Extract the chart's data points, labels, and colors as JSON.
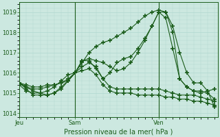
{
  "background_color": "#cce8e0",
  "plot_bg_color": "#cce8e0",
  "grid_color": "#b0d8d0",
  "line_color": "#1a5c1a",
  "title": "Pression niveau de la mer( hPa )",
  "xlabel_day_labels": [
    "Jeu",
    "Sam",
    "Ven"
  ],
  "xlabel_day_positions": [
    0,
    16,
    40
  ],
  "ylim": [
    1013.8,
    1019.5
  ],
  "yticks": [
    1014,
    1015,
    1016,
    1017,
    1018,
    1019
  ],
  "xlim": [
    0,
    57
  ],
  "series": [
    {
      "x": [
        0,
        2,
        4,
        6,
        8,
        10,
        12,
        14,
        16,
        18,
        20,
        22,
        24,
        26,
        28,
        30,
        32,
        34,
        36,
        38,
        40,
        42,
        44,
        46,
        48,
        50,
        52,
        54,
        56
      ],
      "y": [
        1015.5,
        1015.3,
        1015.1,
        1015.0,
        1014.9,
        1015.0,
        1015.2,
        1015.6,
        1016.0,
        1016.5,
        1017.0,
        1017.3,
        1017.5,
        1017.6,
        1017.8,
        1018.0,
        1018.2,
        1018.5,
        1018.8,
        1019.0,
        1019.1,
        1019.0,
        1018.3,
        1017.0,
        1016.0,
        1015.5,
        1015.5,
        1015.1,
        1014.3
      ]
    },
    {
      "x": [
        0,
        2,
        4,
        6,
        8,
        10,
        12,
        14,
        16,
        18,
        20,
        22,
        24,
        26,
        28,
        30,
        32,
        34,
        36,
        38,
        40,
        42,
        44,
        46,
        48,
        50,
        52,
        54,
        56
      ],
      "y": [
        1015.5,
        1015.2,
        1014.9,
        1014.9,
        1014.9,
        1015.0,
        1015.3,
        1015.6,
        1016.0,
        1016.6,
        1016.7,
        1016.6,
        1016.5,
        1016.3,
        1016.1,
        1016.2,
        1016.5,
        1017.0,
        1017.6,
        1018.3,
        1019.0,
        1018.7,
        1017.2,
        1015.7,
        1015.3,
        1015.1,
        1015.1,
        1015.0,
        1014.7
      ]
    },
    {
      "x": [
        0,
        2,
        4,
        6,
        8,
        10,
        12,
        14,
        16,
        18,
        20,
        22,
        24,
        26,
        28,
        30,
        32,
        34,
        36,
        38,
        40,
        42,
        44,
        46,
        48,
        50,
        52,
        54,
        56
      ],
      "y": [
        1015.4,
        1015.1,
        1015.0,
        1015.0,
        1015.1,
        1015.3,
        1015.6,
        1015.9,
        1016.0,
        1016.6,
        1016.6,
        1016.2,
        1015.7,
        1016.0,
        1016.5,
        1016.7,
        1016.8,
        1017.2,
        1017.7,
        1018.3,
        1019.0,
        1019.0,
        1018.0,
        1015.7,
        1015.3,
        1015.1,
        1015.0,
        1015.1,
        1015.2
      ]
    },
    {
      "x": [
        0,
        2,
        4,
        6,
        8,
        10,
        12,
        14,
        16,
        18,
        20,
        22,
        24,
        26,
        28,
        30,
        32,
        34,
        36,
        38,
        40,
        42,
        44,
        46,
        48,
        50,
        52,
        54,
        56
      ],
      "y": [
        1015.5,
        1015.3,
        1015.2,
        1015.2,
        1015.3,
        1015.4,
        1015.5,
        1015.7,
        1016.0,
        1016.3,
        1016.5,
        1016.3,
        1015.7,
        1015.3,
        1015.2,
        1015.2,
        1015.2,
        1015.2,
        1015.2,
        1015.2,
        1015.2,
        1015.1,
        1015.0,
        1014.9,
        1014.9,
        1014.9,
        1014.8,
        1014.7,
        1014.6
      ]
    },
    {
      "x": [
        0,
        2,
        4,
        6,
        8,
        10,
        12,
        14,
        16,
        18,
        20,
        22,
        24,
        26,
        28,
        30,
        32,
        34,
        36,
        38,
        40,
        42,
        44,
        46,
        48,
        50,
        52,
        54,
        56
      ],
      "y": [
        1015.5,
        1015.4,
        1015.3,
        1015.3,
        1015.4,
        1015.4,
        1015.5,
        1015.6,
        1016.0,
        1016.1,
        1016.2,
        1015.9,
        1015.4,
        1015.1,
        1015.0,
        1015.0,
        1015.0,
        1014.9,
        1014.9,
        1014.9,
        1014.9,
        1014.8,
        1014.8,
        1014.7,
        1014.7,
        1014.6,
        1014.6,
        1014.5,
        1014.4
      ]
    }
  ],
  "marker": "+",
  "markersize": 4.0,
  "linewidth": 0.8,
  "markeredgewidth": 1.2
}
